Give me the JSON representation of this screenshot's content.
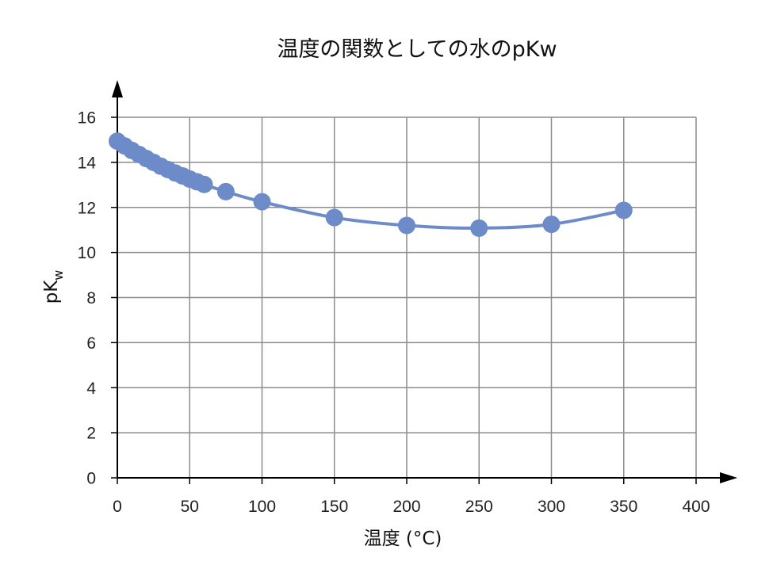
{
  "chart_data": {
    "type": "line",
    "title": "温度の関数としての水のpKw",
    "xlabel": "温度 (°C)",
    "ylabel": {
      "main": "pK",
      "sub": "w"
    },
    "xlim": [
      0,
      400
    ],
    "ylim": [
      0,
      16
    ],
    "x_ticks": [
      0,
      50,
      100,
      150,
      200,
      250,
      300,
      350,
      400
    ],
    "y_ticks": [
      0,
      2,
      4,
      6,
      8,
      10,
      12,
      14,
      16
    ],
    "grid": true,
    "series_color": "#6d8bc9",
    "series": [
      {
        "x": [
          0,
          5,
          10,
          15,
          20,
          25,
          30,
          35,
          40,
          45,
          50,
          55,
          60,
          75,
          100,
          150,
          200,
          250,
          300,
          350
        ],
        "y": [
          14.94,
          14.73,
          14.53,
          14.35,
          14.17,
          14.0,
          13.83,
          13.68,
          13.53,
          13.4,
          13.26,
          13.14,
          13.02,
          12.7,
          12.25,
          11.55,
          11.2,
          11.08,
          11.25,
          11.87
        ]
      }
    ]
  }
}
